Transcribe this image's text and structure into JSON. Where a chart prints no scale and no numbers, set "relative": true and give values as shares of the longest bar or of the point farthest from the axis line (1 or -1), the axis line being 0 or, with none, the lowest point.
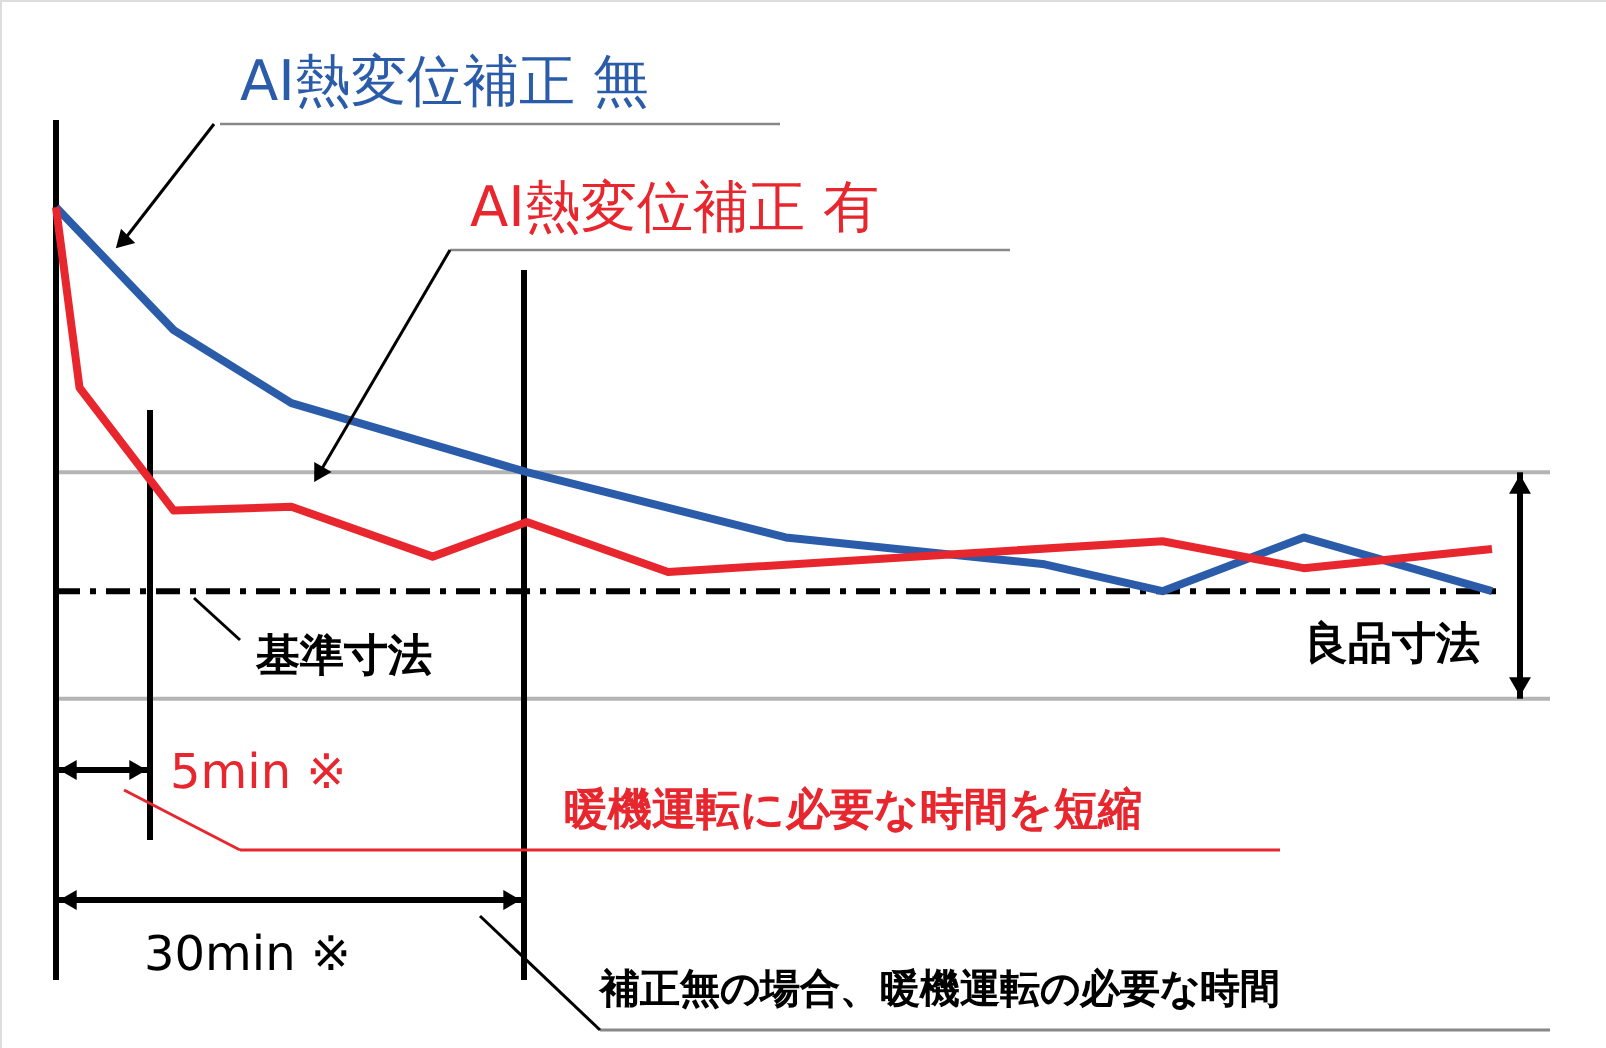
{
  "chart_data": {
    "type": "line",
    "relative": true,
    "marker": "none",
    "line_style": "solid",
    "categories": [
      null,
      null,
      null,
      null,
      null,
      null,
      null,
      null,
      null,
      null,
      null,
      null,
      null,
      null,
      null,
      null,
      null,
      null,
      null,
      null,
      null,
      null,
      null,
      null,
      null,
      null,
      null,
      null,
      null,
      null,
      null,
      null,
      null,
      null,
      null,
      null,
      null,
      null,
      null,
      null,
      null,
      null,
      null,
      null,
      null,
      null,
      null,
      null,
      null,
      null,
      null,
      null,
      null,
      null,
      null,
      null,
      null,
      null,
      null,
      null,
      null,
      null
    ],
    "series": [
      {
        "name": "AI熱変位補正 無",
        "color": "#2b5caa",
        "values": [
          1,
          null,
          null,
          null,
          null,
          0.68,
          null,
          null,
          null,
          null,
          0.49,
          null,
          null,
          null,
          null,
          null,
          null,
          null,
          null,
          null,
          0.31,
          null,
          null,
          null,
          null,
          null,
          null,
          null,
          null,
          null,
          null,
          0.14,
          null,
          null,
          null,
          null,
          null,
          null,
          null,
          null,
          null,
          null,
          0.07,
          null,
          null,
          null,
          null,
          0,
          null,
          null,
          null,
          null,
          null,
          0.14,
          null,
          null,
          null,
          null,
          null,
          null,
          null,
          0
        ]
      },
      {
        "name": "AI熱変位補正 有",
        "color": "#e8262e",
        "values": [
          1,
          0.53,
          null,
          null,
          null,
          0.21,
          null,
          null,
          null,
          null,
          0.22,
          null,
          null,
          null,
          null,
          null,
          0.09,
          null,
          null,
          null,
          0.18,
          null,
          null,
          null,
          null,
          null,
          0.05,
          null,
          null,
          null,
          null,
          null,
          null,
          null,
          null,
          null,
          null,
          null,
          null,
          null,
          null,
          null,
          null,
          null,
          null,
          null,
          null,
          0.13,
          null,
          null,
          null,
          null,
          null,
          0.06,
          null,
          null,
          null,
          null,
          null,
          null,
          null,
          0.11
        ]
      }
    ],
    "ref_lines": [
      {
        "axis": "y",
        "value": 0,
        "label": "基準寸法",
        "color": "#000000",
        "line_style": "dashed"
      },
      {
        "axis": "y",
        "value": 0.31,
        "color": "#b4b4b4"
      },
      {
        "axis": "y",
        "value": -0.28,
        "color": "#b4b4b4"
      }
    ],
    "annotations": [
      "5min ※",
      "暖機運転に必要な時間を短縮",
      "30min ※",
      "補正無の場合、暖機運転の必要な時間",
      "良品寸法"
    ]
  }
}
